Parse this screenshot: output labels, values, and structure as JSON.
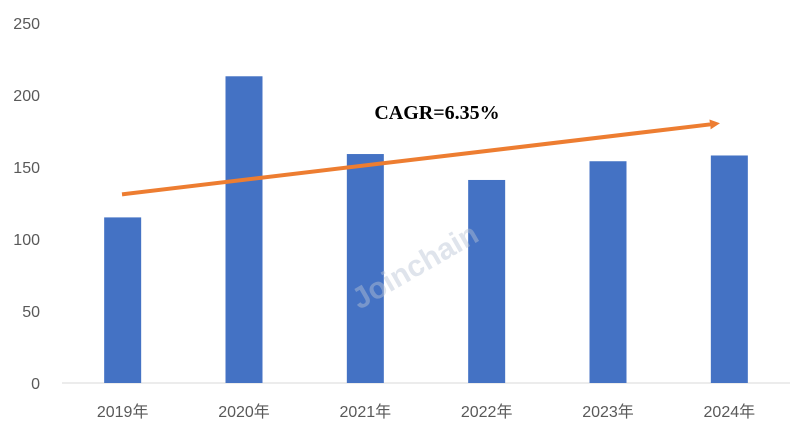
{
  "chart_data": {
    "type": "bar",
    "categories": [
      "2019年",
      "2020年",
      "2021年",
      "2022年",
      "2023年",
      "2024年"
    ],
    "values": [
      115,
      213,
      159,
      141,
      154,
      158
    ],
    "ylim": [
      0,
      250
    ],
    "yticks": [
      0,
      50,
      100,
      150,
      200,
      250
    ],
    "grid": false,
    "bar_color": "#4472c4",
    "annotations": [
      {
        "text": "CAGR=6.35%",
        "kind": "trend-arrow",
        "color": "#ed7d31",
        "from_value": 131,
        "to_value": 180
      }
    ],
    "watermark": "Joinchain"
  }
}
